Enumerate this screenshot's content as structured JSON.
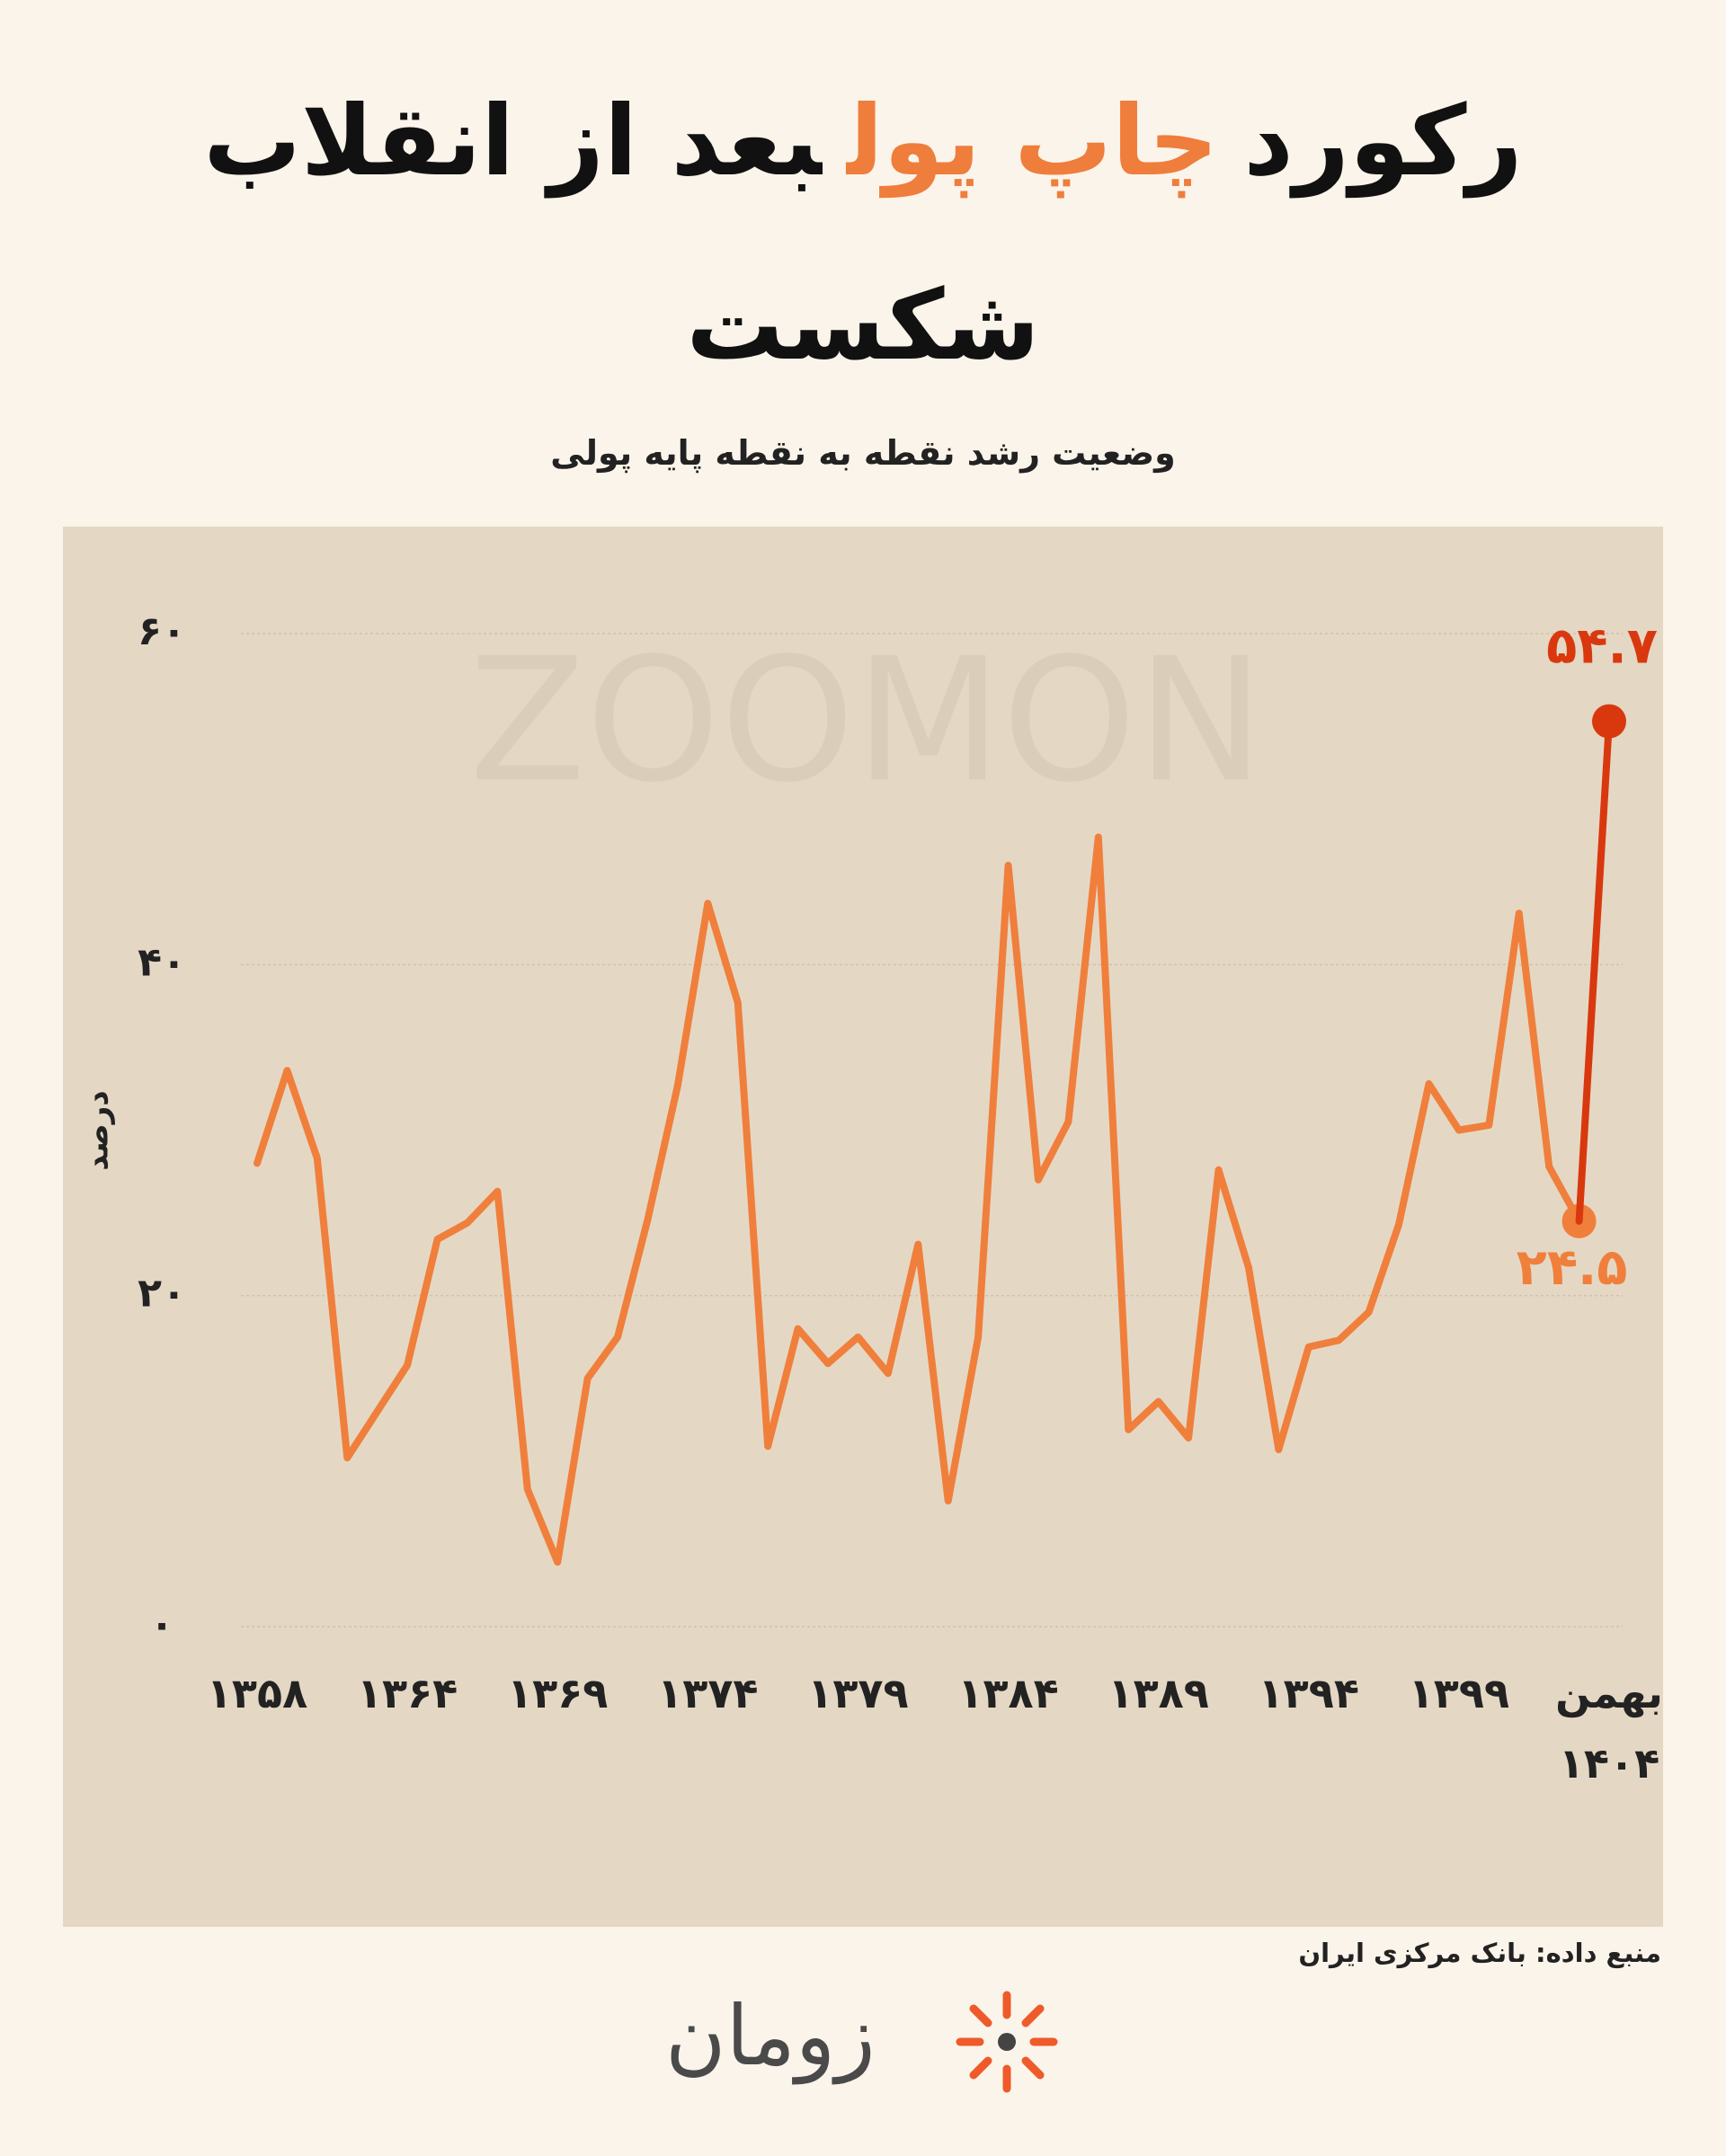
{
  "chart_data": {
    "type": "line",
    "title": {
      "parts": [
        "رکورد",
        "چاپ پول",
        "بعد از انقلاب"
      ],
      "line2": "شکست"
    },
    "highlight_color": "#ef7d3c",
    "subtitle": "وضعیت رشد نقطه به نقطه پایه پولی",
    "y_label": "درصد",
    "watermark": "ZOOMON",
    "source": "منبع داده: بانک مرکزی ایران",
    "logo": "زومان",
    "categories": [
      "۱۳۵۸",
      null,
      null,
      null,
      null,
      "۱۳۶۴",
      null,
      null,
      null,
      null,
      "۱۳۶۹",
      null,
      null,
      null,
      null,
      "۱۳۷۴",
      null,
      null,
      null,
      null,
      "۱۳۷۹",
      null,
      null,
      null,
      null,
      "۱۳۸۴",
      null,
      null,
      null,
      null,
      "۱۳۸۹",
      null,
      null,
      null,
      null,
      "۱۳۹۴",
      null,
      null,
      null,
      null,
      "۱۳۹۹",
      null,
      null,
      null,
      null,
      "بهمن ۱۴۰۴"
    ],
    "series": [
      {
        "color": "#f07f3c",
        "values": [
          28.0,
          33.6,
          28.3,
          10.2,
          13.0,
          15.8,
          23.4,
          24.4,
          26.3,
          8.3,
          3.9,
          15.0,
          17.5,
          24.6,
          32.7,
          43.7,
          37.7,
          10.9,
          18.0,
          15.9,
          17.5,
          15.3,
          23.1,
          7.6,
          17.5,
          46.0,
          27.0,
          30.5,
          47.7,
          11.9,
          13.6,
          11.4,
          27.6,
          21.7,
          10.7,
          16.9,
          17.3,
          19.0,
          24.3,
          32.8,
          30.0,
          30.3,
          43.1,
          27.8,
          24.5,
          null
        ],
        "value_labels": [
          null,
          null,
          null,
          null,
          null,
          null,
          null,
          null,
          null,
          null,
          null,
          null,
          null,
          null,
          null,
          null,
          null,
          null,
          null,
          null,
          null,
          null,
          null,
          null,
          null,
          null,
          null,
          null,
          null,
          null,
          null,
          null,
          null,
          null,
          null,
          null,
          null,
          null,
          null,
          null,
          null,
          null,
          null,
          null,
          "۲۴.۵",
          null
        ]
      },
      {
        "color": "#d9380f",
        "values": [
          null,
          null,
          null,
          null,
          null,
          null,
          null,
          null,
          null,
          null,
          null,
          null,
          null,
          null,
          null,
          null,
          null,
          null,
          null,
          null,
          null,
          null,
          null,
          null,
          null,
          null,
          null,
          null,
          null,
          null,
          null,
          null,
          null,
          null,
          null,
          null,
          null,
          null,
          null,
          null,
          null,
          null,
          null,
          null,
          24.5,
          54.7
        ],
        "value_labels": [
          null,
          null,
          null,
          null,
          null,
          null,
          null,
          null,
          null,
          null,
          null,
          null,
          null,
          null,
          null,
          null,
          null,
          null,
          null,
          null,
          null,
          null,
          null,
          null,
          null,
          null,
          null,
          null,
          null,
          null,
          null,
          null,
          null,
          null,
          null,
          null,
          null,
          null,
          null,
          null,
          null,
          null,
          null,
          null,
          null,
          "۵۴.۷"
        ]
      }
    ],
    "ylim": [
      0,
      60
    ],
    "yticks": [
      {
        "value": 0,
        "label": "۰"
      },
      {
        "value": 20,
        "label": "۲۰"
      },
      {
        "value": 40,
        "label": "۴۰"
      },
      {
        "value": 60,
        "label": "۶۰"
      }
    ],
    "grid": true,
    "panel_color": "#e4d8c4"
  }
}
